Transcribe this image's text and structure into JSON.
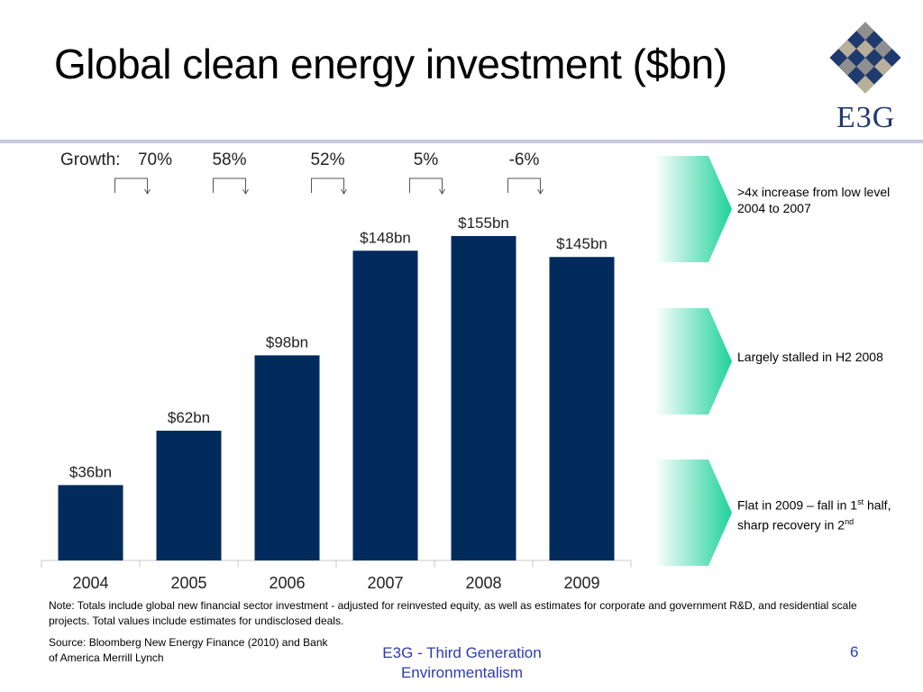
{
  "slide": {
    "title": "Global clean energy investment ($bn)",
    "logo_text": "E3G",
    "note": "Note: Totals  include  global  new financial sector investment - adjusted for reinvested equity, as well as  estimates for corporate and government R&D, and residential scale projects.  Total values include estimates for undisclosed deals.",
    "source": "Source: Bloomberg New Energy Finance (2010) and Bank of America Merrill Lynch",
    "footer": "E3G - Third Generation Environmentalism",
    "page_number": "6"
  },
  "callouts": [
    {
      "text": ">4x increase from low level 2004 to 2007"
    },
    {
      "text": "Largely stalled in H2 2008"
    },
    {
      "text_parts": [
        "Flat in 2009 – fall in 1",
        "st",
        " half, sharp recovery in 2",
        "nd"
      ]
    }
  ],
  "chart_data": {
    "type": "bar",
    "title": "Global clean energy investment ($bn)",
    "categories": [
      "2004",
      "2005",
      "2006",
      "2007",
      "2008",
      "2009"
    ],
    "values": [
      36,
      62,
      98,
      148,
      155,
      145
    ],
    "data_labels": [
      "$36bn",
      "$62bn",
      "$98bn",
      "$148bn",
      "$155bn",
      "$145bn"
    ],
    "growth_label": "Growth:",
    "growth": [
      "70%",
      "58%",
      "52%",
      "5%",
      "-6%"
    ],
    "ylim": [
      0,
      155
    ],
    "bar_color": "#002b5c",
    "grid": false,
    "legend": "none"
  },
  "colors": {
    "title_rule": "#c9c6e4",
    "callout_gradient_start": "#ffffff",
    "callout_gradient_end": "#1fd29a",
    "footer_text": "#2e3cb0"
  }
}
